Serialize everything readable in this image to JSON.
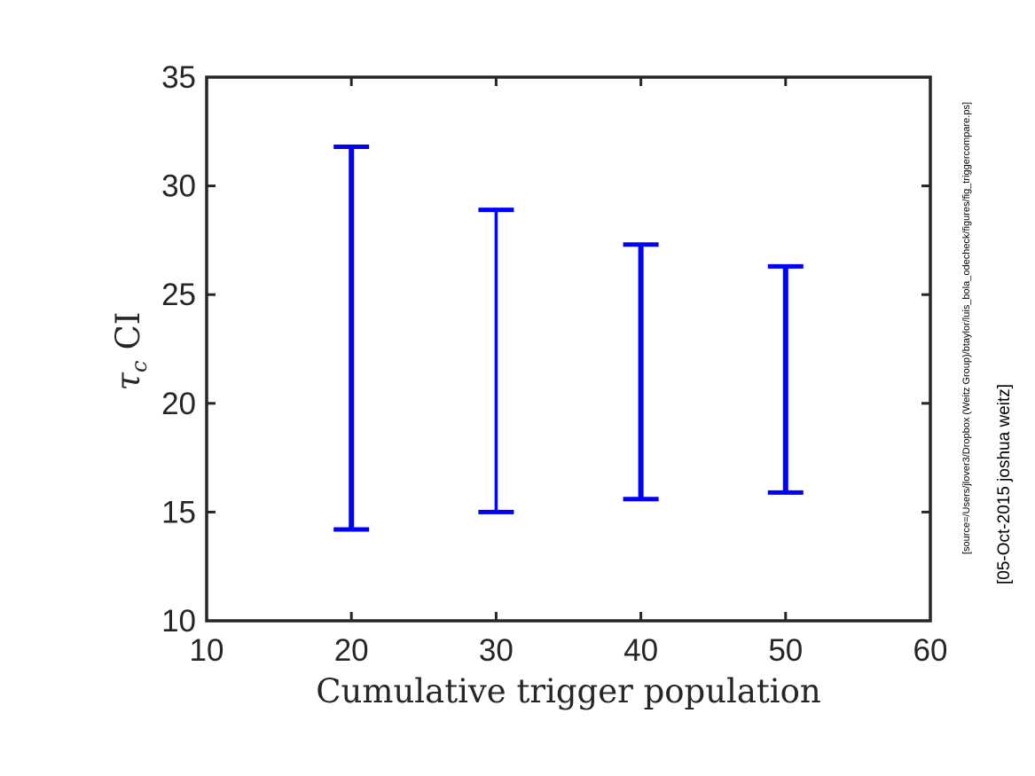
{
  "chart_data": {
    "type": "errorbar",
    "title": "",
    "xlabel": "Cumulative trigger population",
    "ylabel_symbol": "τ",
    "ylabel_subscript": "c",
    "ylabel_suffix": "CI",
    "xlim": [
      10,
      60
    ],
    "ylim": [
      10,
      35
    ],
    "xticks": [
      10,
      20,
      30,
      40,
      50,
      60
    ],
    "yticks": [
      10,
      15,
      20,
      25,
      30,
      35
    ],
    "grid": false,
    "series": [
      {
        "color": "#0000ff",
        "points": [
          {
            "x": 20,
            "low": 14.2,
            "high": 31.8
          },
          {
            "x": 30,
            "low": 15.0,
            "high": 28.9
          },
          {
            "x": 40,
            "low": 15.6,
            "high": 27.3
          },
          {
            "x": 50,
            "low": 15.9,
            "high": 26.3
          }
        ]
      }
    ]
  },
  "side_notes": {
    "source_path": "[source=/Users/jlover3/Dropbox (Weitz Group)/btaylor/luis_bola_odecheck/figures/fig_triggercompare.ps]",
    "stamp": "[05-Oct-2015 joshua weitz]"
  },
  "colors": {
    "axis": "#262626",
    "errorbar": "#0000ff"
  }
}
